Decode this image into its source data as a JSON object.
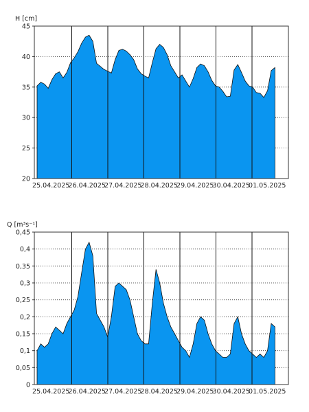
{
  "chart_data": [
    {
      "type": "area",
      "ylabel": "H [cm]",
      "ylim": [
        20,
        45
      ],
      "y_ticks": [
        "45",
        "40",
        "35",
        "30",
        "25",
        "20"
      ],
      "y_tick_values": [
        45,
        40,
        35,
        30,
        25,
        20
      ],
      "x_ticks": [
        "25.04.2025",
        "26.04.2025",
        "27.04.2025",
        "28.04.2025",
        "29.04.2025",
        "30.04.2025",
        "01.05.2025"
      ],
      "grid": true,
      "fill_color": "#0a95f0",
      "series": [
        {
          "x": [
            0,
            1,
            2,
            3,
            4,
            5,
            6,
            7,
            8,
            9,
            10,
            11,
            12,
            13,
            14,
            15,
            16,
            17,
            18,
            19,
            20,
            21,
            22,
            23,
            24,
            25,
            26,
            27,
            28,
            29,
            30,
            31,
            32,
            33,
            34,
            35,
            36,
            37,
            38,
            39,
            40,
            41,
            42,
            43,
            44,
            45,
            46,
            47,
            48,
            49,
            50,
            51,
            52,
            53,
            54,
            55,
            56,
            57,
            58,
            59,
            60,
            61,
            62,
            63,
            64
          ],
          "values": [
            35.2,
            35.8,
            35.5,
            34.8,
            36.2,
            37.2,
            37.5,
            36.5,
            37.4,
            39.0,
            39.8,
            40.8,
            42.2,
            43.2,
            43.5,
            42.5,
            38.9,
            38.4,
            37.9,
            37.6,
            37.3,
            39.5,
            41.0,
            41.2,
            40.9,
            40.3,
            39.5,
            38.0,
            37.2,
            36.8,
            36.5,
            39.0,
            41.3,
            42.0,
            41.5,
            40.3,
            38.5,
            37.5,
            36.5,
            37.0,
            36.0,
            35.0,
            36.4,
            38.2,
            38.8,
            38.5,
            37.5,
            36.1,
            35.2,
            35.0,
            34.3,
            33.4,
            33.5,
            37.8,
            38.7,
            37.4,
            36.0,
            35.2,
            35.0,
            34.1,
            34.0,
            33.3,
            34.4,
            37.7,
            38.2
          ]
        }
      ]
    },
    {
      "type": "area",
      "ylabel": "Q [m³s⁻¹]",
      "ylim": [
        0,
        0.45
      ],
      "y_ticks": [
        "0,45",
        "0,4",
        "0,35",
        "0,3",
        "0,25",
        "0,2",
        "0,15",
        "0,1",
        "0,05",
        "0"
      ],
      "y_tick_values": [
        0.45,
        0.4,
        0.35,
        0.3,
        0.25,
        0.2,
        0.15,
        0.1,
        0.05,
        0
      ],
      "x_ticks": [
        "25.04.2025",
        "26.04.2025",
        "27.04.2025",
        "28.04.2025",
        "29.04.2025",
        "30.04.2025",
        "01.05.2025"
      ],
      "grid": true,
      "fill_color": "#0a95f0",
      "series": [
        {
          "x": [
            0,
            1,
            2,
            3,
            4,
            5,
            6,
            7,
            8,
            9,
            10,
            11,
            12,
            13,
            14,
            15,
            16,
            17,
            18,
            19,
            20,
            21,
            22,
            23,
            24,
            25,
            26,
            27,
            28,
            29,
            30,
            31,
            32,
            33,
            34,
            35,
            36,
            37,
            38,
            39,
            40,
            41,
            42,
            43,
            44,
            45,
            46,
            47,
            48,
            49,
            50,
            51,
            52,
            53,
            54,
            55,
            56,
            57,
            58,
            59,
            60,
            61,
            62,
            63,
            64
          ],
          "values": [
            0.1,
            0.12,
            0.11,
            0.12,
            0.15,
            0.17,
            0.16,
            0.15,
            0.18,
            0.2,
            0.22,
            0.26,
            0.33,
            0.4,
            0.42,
            0.38,
            0.21,
            0.19,
            0.17,
            0.14,
            0.2,
            0.29,
            0.3,
            0.29,
            0.28,
            0.25,
            0.2,
            0.15,
            0.13,
            0.12,
            0.12,
            0.24,
            0.34,
            0.3,
            0.24,
            0.2,
            0.17,
            0.15,
            0.13,
            0.11,
            0.1,
            0.08,
            0.12,
            0.18,
            0.2,
            0.19,
            0.15,
            0.12,
            0.1,
            0.09,
            0.08,
            0.08,
            0.09,
            0.18,
            0.2,
            0.15,
            0.12,
            0.1,
            0.09,
            0.08,
            0.09,
            0.08,
            0.1,
            0.18,
            0.17
          ]
        }
      ]
    }
  ]
}
